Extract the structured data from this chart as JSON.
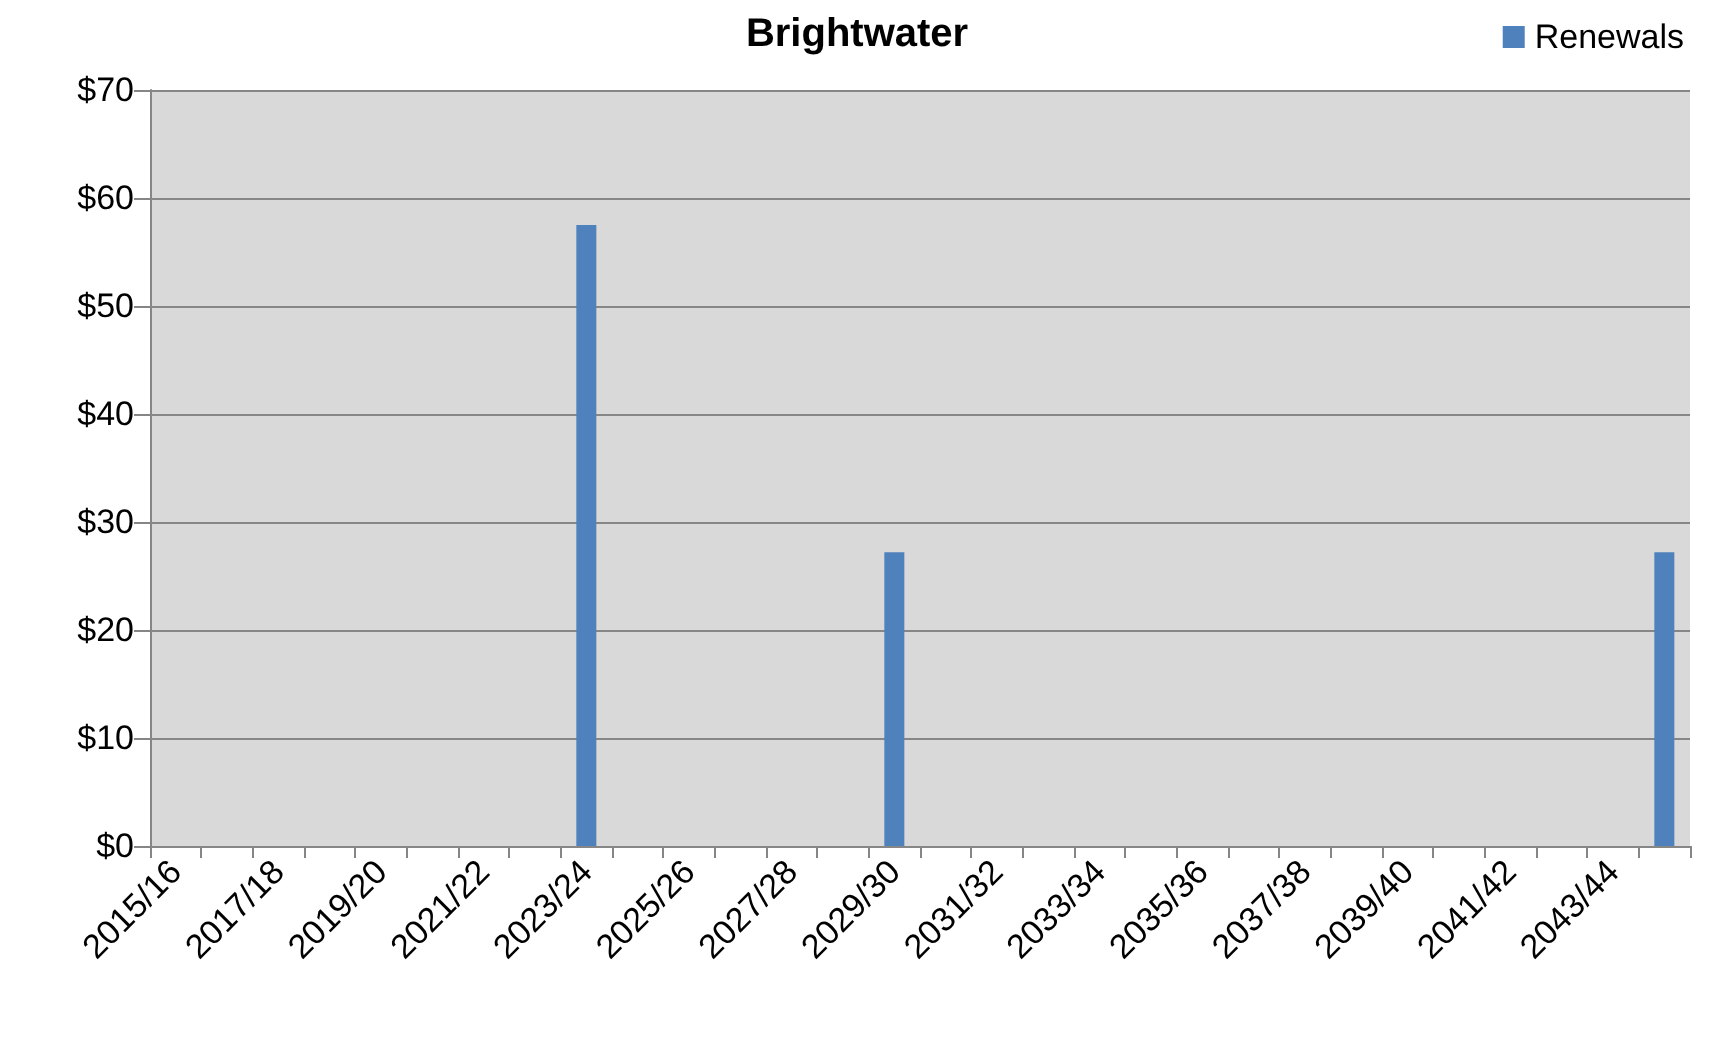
{
  "chart_data": {
    "type": "bar",
    "title": "Brightwater",
    "categories": [
      "2015/16",
      null,
      "2017/18",
      null,
      "2019/20",
      null,
      "2021/22",
      null,
      "2023/24",
      null,
      "2025/26",
      null,
      "2027/28",
      null,
      "2029/30",
      null,
      "2031/32",
      null,
      "2033/34",
      null,
      "2035/36",
      null,
      "2037/38",
      null,
      "2039/40",
      null,
      "2041/42",
      null,
      "2043/44",
      null
    ],
    "series": [
      {
        "name": "Renewals",
        "color": "#4f81bd",
        "values": [
          0,
          0,
          0,
          0,
          0,
          0,
          0,
          0,
          57.5,
          0,
          0,
          0,
          0,
          0,
          27.2,
          0,
          0,
          0,
          0,
          0,
          0,
          0,
          0,
          0,
          0,
          0,
          0,
          0,
          0,
          27.2
        ]
      }
    ],
    "ylim": [
      0,
      70
    ],
    "yticks": [
      {
        "value": 0,
        "label": "$0"
      },
      {
        "value": 10,
        "label": "$10"
      },
      {
        "value": 20,
        "label": "$20"
      },
      {
        "value": 30,
        "label": "$30"
      },
      {
        "value": 40,
        "label": "$40"
      },
      {
        "value": 50,
        "label": "$50"
      },
      {
        "value": 60,
        "label": "$60"
      },
      {
        "value": 70,
        "label": "$70"
      }
    ],
    "grid": "y",
    "legend": "top right"
  }
}
